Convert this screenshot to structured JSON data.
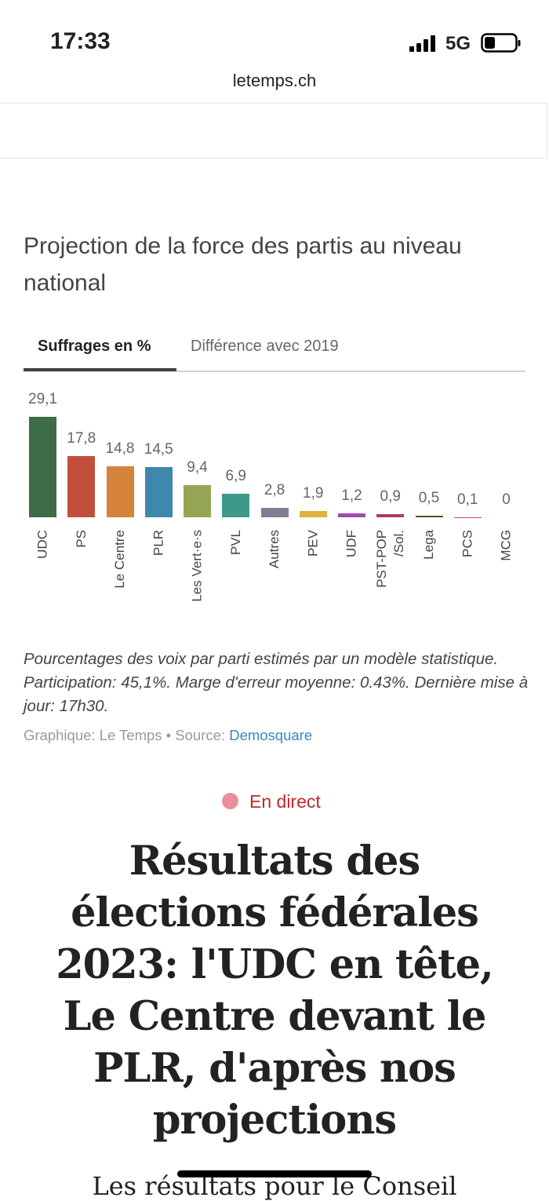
{
  "status_bar": {
    "time": "17:33",
    "network": "5G"
  },
  "url": "letemps.ch",
  "chart_data": {
    "type": "bar",
    "title": "Projection de la force des partis au niveau national",
    "tabs": [
      "Suffrages en %",
      "Différence avec 2019"
    ],
    "categories": [
      "UDC",
      "PS",
      "Le Centre",
      "PLR",
      "Les Vert·e·s",
      "PVL",
      "Autres",
      "PEV",
      "UDF",
      "PST-POP /Sol.",
      "Lega",
      "PCS",
      "MCG"
    ],
    "values": [
      29.1,
      17.8,
      14.8,
      14.5,
      9.4,
      6.9,
      2.8,
      1.9,
      1.2,
      0.9,
      0.5,
      0.1,
      0
    ],
    "value_labels": [
      "29,1",
      "17,8",
      "14,8",
      "14,5",
      "9,4",
      "6,9",
      "2,8",
      "1,9",
      "1,2",
      "0,9",
      "0,5",
      "0,1",
      "0"
    ],
    "colors": [
      "#3e6b48",
      "#c24f3c",
      "#d5833a",
      "#3f87ab",
      "#94a653",
      "#3f998b",
      "#7e7e90",
      "#dfb03e",
      "#9c4fa4",
      "#b03a5e",
      "#5c4b2b",
      "#c24b6b",
      "#666666"
    ],
    "note": "Pourcentages des voix par parti estimés par un modèle statistique. Participation: 45,1%. Marge d'erreur moyenne: 0.43%. Dernière mise à jour: 17h30.",
    "credit": "Graphique: Le Temps • Source:",
    "source_link": "Demosquare"
  },
  "article": {
    "live_label": "En direct",
    "headline_lines": [
      "Résultats des",
      "élections fédérales",
      "2023: l'UDC en tête,",
      "Le Centre devant le",
      "PLR, d'après nos",
      "projections"
    ],
    "lead": "Les résultats pour le Conseil"
  }
}
